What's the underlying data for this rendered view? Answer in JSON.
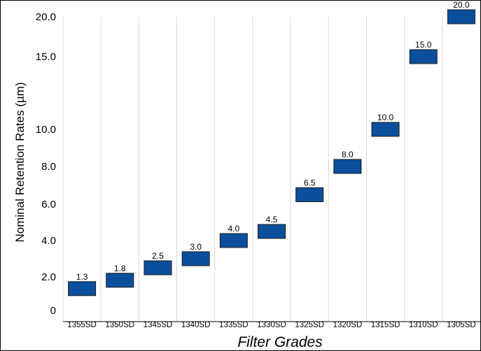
{
  "chart_data": {
    "type": "bar",
    "title": "",
    "xlabel": "Filter Grades",
    "ylabel": "Nominal Retention Rates (µm)",
    "categories": [
      "1355SD",
      "1350SD",
      "1345SD",
      "1340SD",
      "1335SD",
      "1330SD",
      "1325SD",
      "1320SD",
      "1315SD",
      "1310SD",
      "1305SD"
    ],
    "values": [
      1.3,
      1.8,
      2.5,
      3.0,
      4.0,
      4.5,
      6.5,
      8.0,
      10.0,
      15.0,
      20.0
    ],
    "value_labels": [
      "1.3",
      "1.8",
      "2.5",
      "3.0",
      "4.0",
      "4.5",
      "6.5",
      "8.0",
      "10.0",
      "15.0",
      "20.0"
    ],
    "yticks": [
      {
        "value": 0,
        "label": "0"
      },
      {
        "value": 2,
        "label": "2.0"
      },
      {
        "value": 4,
        "label": "4.0"
      },
      {
        "value": 6,
        "label": "6.0"
      },
      {
        "value": 8,
        "label": "8.0"
      },
      {
        "value": 10,
        "label": "10.0"
      },
      {
        "value": 15,
        "label": "15.0"
      },
      {
        "value": 20,
        "label": "20.0"
      }
    ],
    "ylim": [
      0,
      20
    ],
    "y_scale": "piecewise: 0-10 linear, 10-20 compressed",
    "bar_style": "floating box centered on value",
    "grid": "vertical category separators",
    "legend": "none",
    "colors": {
      "bar": "#0b4f9c",
      "bar_stroke": "#1a1a1a",
      "grid": "#d9d9d9",
      "frame": "#000000"
    }
  }
}
